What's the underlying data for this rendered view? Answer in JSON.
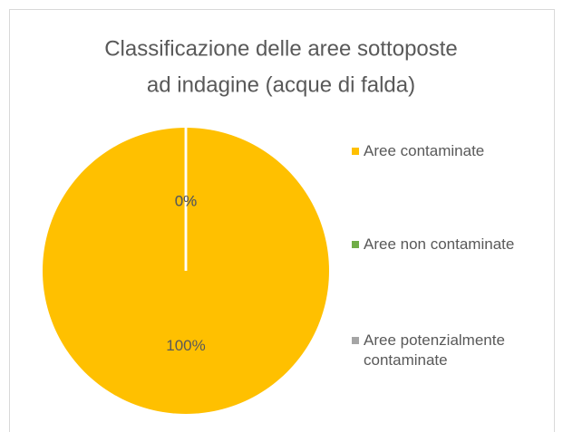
{
  "chart_data": {
    "type": "pie",
    "title": [
      "Classificazione delle aree sottoposte",
      "ad indagine  (acque di falda)"
    ],
    "categories": [
      "Aree contaminate",
      "Aree non contaminate",
      "Aree potenzialmente contaminate"
    ],
    "values": [
      100,
      0,
      0
    ],
    "value_labels": [
      "100%",
      "0%",
      "0%"
    ],
    "colors": [
      "#FFC000",
      "#70AD47",
      "#A5A5A5"
    ],
    "legend": "right"
  }
}
